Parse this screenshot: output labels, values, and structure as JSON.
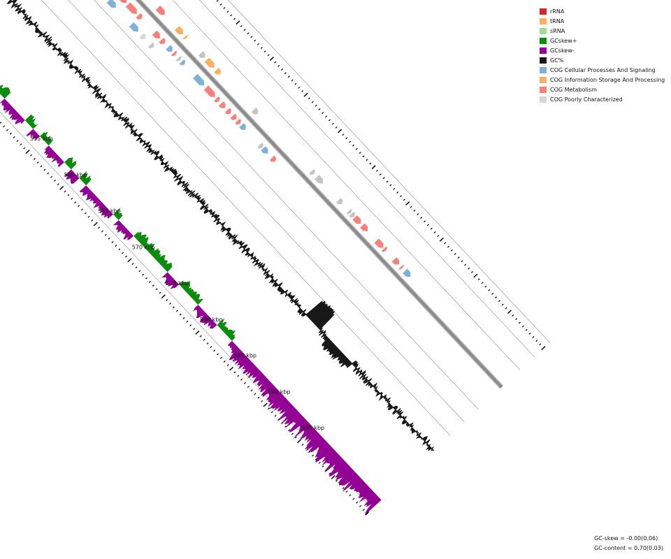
{
  "legend": [
    {
      "label": "rRNA",
      "color": "#d62728",
      "icon": "rrna-swatch-icon"
    },
    {
      "label": "tRNA",
      "color": "#ffb163",
      "icon": "trna-swatch-icon"
    },
    {
      "label": "sRNA",
      "color": "#a5d89a",
      "icon": "srna-swatch-icon"
    },
    {
      "label": "GCskew+",
      "color": "#0c8c0c",
      "icon": "gcskew-plus-swatch-icon"
    },
    {
      "label": "GCskew-",
      "color": "#930094",
      "icon": "gcskew-minus-swatch-icon"
    },
    {
      "label": "GC%",
      "color": "#181818",
      "icon": "gc-content-swatch-icon"
    },
    {
      "label": "COG Cellular Processes And Signaling",
      "color": "#7fb1d8",
      "icon": "cog-cellular-swatch-icon"
    },
    {
      "label": "COG Information Storage And Processing",
      "color": "#f8b064",
      "icon": "cog-information-swatch-icon"
    },
    {
      "label": "COG Metabolism",
      "color": "#f5817a",
      "icon": "cog-metabolism-swatch-icon"
    },
    {
      "label": "COG Poorly Characterized",
      "color": "#d7d7d7",
      "icon": "cog-poorly-swatch-icon"
    }
  ],
  "scale_labels": [
    {
      "kbp": 555,
      "label": "555 kbp"
    },
    {
      "kbp": 560,
      "label": "560 kbp"
    },
    {
      "kbp": 565,
      "label": "565 kbp"
    },
    {
      "kbp": 570,
      "label": "570 kbp"
    },
    {
      "kbp": 575,
      "label": "575 kbp"
    },
    {
      "kbp": 580,
      "label": "580 kbp"
    },
    {
      "kbp": 585,
      "label": "585 kbp"
    },
    {
      "kbp": 590,
      "label": "590 kbp"
    },
    {
      "kbp": 595,
      "label": "595 kbp"
    }
  ],
  "stats": {
    "gc_skew": "GC-skew = -0.00(0.06)",
    "gc_content": "GC-content = 0.70(0.03)"
  },
  "colors": {
    "backbone": "#8a8a8a",
    "guide": "#9a9a9a",
    "tick": "#111111",
    "gc": "#181818",
    "skew_plus": "#0c8c0c",
    "skew_minus": "#930094",
    "cog_cellular": "#7fb1d8",
    "cog_information": "#f8b064",
    "cog_metabolism": "#f5817a",
    "cog_poorly": "#d7d7d7",
    "unassigned": "#c4c4c4"
  },
  "features_outer": [
    {
      "start": 553.4,
      "end": 554.4,
      "cog": "cog_metabolism"
    },
    {
      "start": 556.2,
      "end": 557.1,
      "cog": "cog_information"
    },
    {
      "start": 557.4,
      "end": 557.6,
      "cog": "cog_information"
    },
    {
      "start": 559.7,
      "end": 560.3,
      "cog": "unassigned"
    },
    {
      "start": 560.6,
      "end": 561.7,
      "cog": "cog_information"
    },
    {
      "start": 562.0,
      "end": 562.6,
      "cog": "cog_information"
    },
    {
      "start": 567.5,
      "end": 568.1,
      "cog": "unassigned"
    },
    {
      "start": 576.0,
      "end": 576.4,
      "cog": "unassigned"
    },
    {
      "start": 576.8,
      "end": 577.7,
      "cog": "unassigned"
    },
    {
      "start": 580.0,
      "end": 580.5,
      "cog": "unassigned"
    },
    {
      "start": 581.5,
      "end": 581.8,
      "cog": "unassigned"
    },
    {
      "start": 581.9,
      "end": 582.3,
      "cog": "unassigned"
    },
    {
      "start": 582.4,
      "end": 583.3,
      "cog": "cog_metabolism"
    },
    {
      "start": 583.5,
      "end": 584.3,
      "cog": "cog_metabolism"
    },
    {
      "start": 585.6,
      "end": 586.6,
      "cog": "cog_metabolism"
    },
    {
      "start": 586.7,
      "end": 587.0,
      "cog": "cog_metabolism"
    },
    {
      "start": 588.2,
      "end": 588.9,
      "cog": "cog_metabolism"
    },
    {
      "start": 589.2,
      "end": 589.4,
      "cog": "cog_metabolism"
    },
    {
      "start": 589.8,
      "end": 590.6,
      "cog": "cog_cellular"
    }
  ],
  "features_inner": [
    {
      "start": 548.0,
      "end": 548.8,
      "cog": "cog_metabolism"
    },
    {
      "start": 549.3,
      "end": 550.9,
      "cog": "cog_metabolism"
    },
    {
      "start": 551.1,
      "end": 552.4,
      "cog": "cog_metabolism"
    },
    {
      "start": 552.6,
      "end": 553.1,
      "cog": "cog_metabolism"
    },
    {
      "start": 555.0,
      "end": 555.8,
      "cog": "cog_metabolism"
    },
    {
      "start": 556.0,
      "end": 556.5,
      "cog": "cog_metabolism"
    },
    {
      "start": 557.0,
      "end": 557.6,
      "cog": "cog_cellular"
    },
    {
      "start": 557.8,
      "end": 558.1,
      "cog": "cog_metabolism"
    },
    {
      "start": 558.5,
      "end": 558.8,
      "cog": "unassigned"
    },
    {
      "start": 559.0,
      "end": 559.4,
      "cog": "cog_cellular"
    },
    {
      "start": 561.0,
      "end": 562.3,
      "cog": "cog_cellular"
    },
    {
      "start": 562.6,
      "end": 563.9,
      "cog": "cog_metabolism"
    },
    {
      "start": 564.1,
      "end": 564.5,
      "cog": "cog_metabolism"
    },
    {
      "start": 564.8,
      "end": 565.4,
      "cog": "cog_metabolism"
    },
    {
      "start": 565.7,
      "end": 566.2,
      "cog": "cog_metabolism"
    },
    {
      "start": 566.5,
      "end": 567.0,
      "cog": "cog_metabolism"
    },
    {
      "start": 567.2,
      "end": 567.6,
      "cog": "cog_metabolism"
    },
    {
      "start": 567.8,
      "end": 568.4,
      "cog": "cog_cellular"
    },
    {
      "start": 570.5,
      "end": 570.9,
      "cog": "unassigned"
    },
    {
      "start": 571.0,
      "end": 571.7,
      "cog": "cog_cellular"
    },
    {
      "start": 572.3,
      "end": 572.8,
      "cog": "cog_metabolism"
    }
  ],
  "features_lane3": [
    {
      "start": 549.5,
      "end": 550.5,
      "cog": "cog_cellular"
    },
    {
      "start": 552.8,
      "end": 553.8,
      "cog": "cog_cellular"
    },
    {
      "start": 554.3,
      "end": 554.8,
      "cog": "cog_poorly"
    },
    {
      "start": 555.6,
      "end": 556.0,
      "cog": "unassigned"
    }
  ],
  "features_top": [
    {
      "start": 546.4,
      "end": 547.4,
      "cog": "cog_poorly"
    }
  ]
}
